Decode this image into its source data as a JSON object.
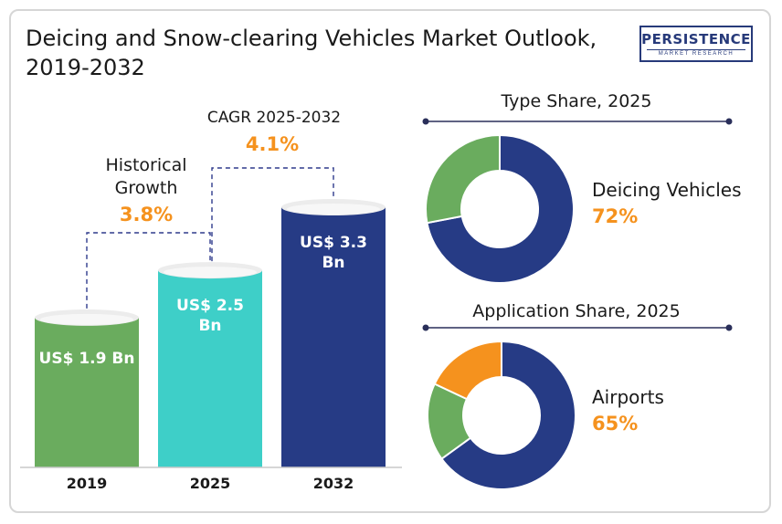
{
  "title": "Deicing and Snow-clearing Vehicles Market Outlook, 2019-2032",
  "logo": {
    "main": "PERSISTENCE",
    "sub": "MARKET RESEARCH"
  },
  "colors": {
    "green": "#6aac5e",
    "teal": "#3ecfc8",
    "navy": "#263b85",
    "orange": "#f5921e",
    "dash": "#2e3a8c"
  },
  "annotations": {
    "historical_label_1": "Historical",
    "historical_label_2": "Growth",
    "historical_value": "3.8%",
    "cagr_label": "CAGR 2025-2032",
    "cagr_value": "4.1%"
  },
  "chart_data": [
    {
      "type": "bar",
      "categories": [
        "2019",
        "2025",
        "2032"
      ],
      "values": [
        1.9,
        2.5,
        3.3
      ],
      "value_labels": [
        [
          "US$ 1.9 Bn"
        ],
        [
          "US$ 2.5",
          "Bn"
        ],
        [
          "US$ 3.3",
          "Bn"
        ]
      ],
      "title": "",
      "xlabel": "",
      "ylabel": "",
      "ylim": [
        0,
        3.3
      ]
    },
    {
      "type": "pie",
      "title": "Type Share, 2025",
      "slices": [
        {
          "label": "Deicing Vehicles",
          "value": 72
        },
        {
          "label": "",
          "value": 28
        }
      ],
      "highlight_label": "Deicing Vehicles",
      "highlight_value": "72%"
    },
    {
      "type": "pie",
      "title": "Application Share, 2025",
      "slices": [
        {
          "label": "Airports",
          "value": 65
        },
        {
          "label": "",
          "value": 17
        },
        {
          "label": "",
          "value": 18
        }
      ],
      "highlight_label": "Airports",
      "highlight_value": "65%"
    }
  ]
}
